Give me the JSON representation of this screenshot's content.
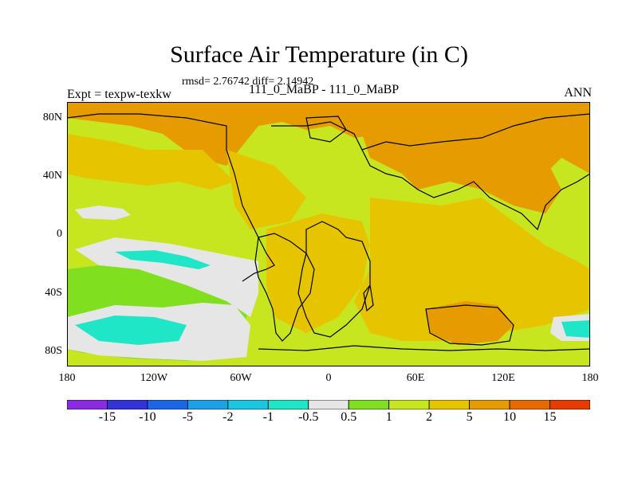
{
  "title": "Surface Air Temperature (in C)",
  "stats": "rmsd= 2.76742  diff= 2.14942",
  "experiment": "Expt = texpw-texkw",
  "period": "111_0_MaBP - 111_0_MaBP",
  "season": "ANN",
  "axes": {
    "y_ticks": [
      "80N",
      "40N",
      "0",
      "40S",
      "80S"
    ],
    "x_ticks": [
      "180",
      "120W",
      "60W",
      "0",
      "60E",
      "120E",
      "180"
    ]
  },
  "colorbar": {
    "labels": [
      "-15",
      "-10",
      "-5",
      "-2",
      "-1",
      "-0.5",
      "0.5",
      "1",
      "2",
      "5",
      "10",
      "15"
    ],
    "colors": [
      "#8a2be2",
      "#3333d9",
      "#1a66e6",
      "#1ea0e6",
      "#19c8e0",
      "#20e6c8",
      "#e6e6e6",
      "#80e020",
      "#c8e620",
      "#e6c400",
      "#e69c00",
      "#e66a00",
      "#e63c00"
    ]
  },
  "fill_colors": {
    "base": "#c8e620",
    "warm": "#e6c400",
    "hot": "#e69c00",
    "mild": "#80e020",
    "neutral": "#e6e6e6",
    "cool": "#20e6c8"
  }
}
